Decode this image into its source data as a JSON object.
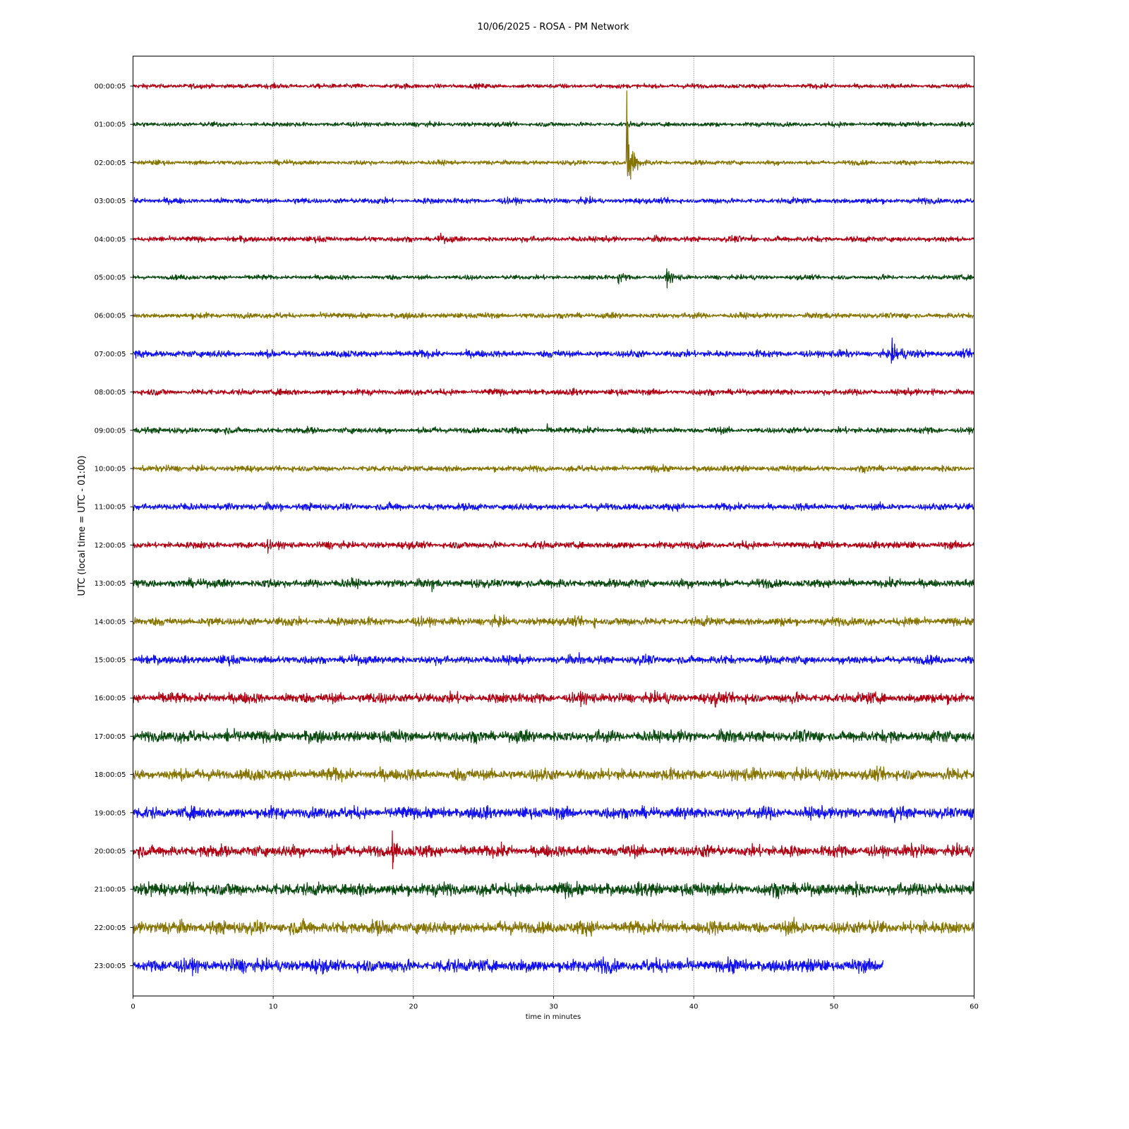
{
  "chart_data": {
    "type": "line",
    "title": "10/06/2025 - ROSA - PM Network",
    "xlabel": "time in minutes",
    "ylabel": "UTC (local time = UTC - 01:00)",
    "xlim": [
      0,
      60
    ],
    "xticks": [
      0,
      10,
      20,
      30,
      40,
      50,
      60
    ],
    "grid": "vertical dotted",
    "colors": [
      "#b00013",
      "#0a4a10",
      "#857400",
      "#1010f0"
    ],
    "series": [
      {
        "label": "00:00:05",
        "noise": 0.1,
        "end": 60,
        "events": []
      },
      {
        "label": "01:00:05",
        "noise": 0.1,
        "end": 60,
        "events": []
      },
      {
        "label": "02:00:05",
        "noise": 0.1,
        "end": 60,
        "events": [
          {
            "t": 35.2,
            "amp": 3.0,
            "dur": 0.9
          }
        ]
      },
      {
        "label": "03:00:05",
        "noise": 0.12,
        "end": 60,
        "events": []
      },
      {
        "label": "04:00:05",
        "noise": 0.12,
        "end": 60,
        "events": [
          {
            "t": 21.8,
            "amp": 0.25,
            "dur": 0.5
          },
          {
            "t": 44.1,
            "amp": 0.25,
            "dur": 0.3
          }
        ]
      },
      {
        "label": "05:00:05",
        "noise": 0.1,
        "end": 60,
        "events": [
          {
            "t": 34.6,
            "amp": 0.3,
            "dur": 1.0
          },
          {
            "t": 38.0,
            "amp": 0.3,
            "dur": 1.2
          }
        ]
      },
      {
        "label": "06:00:05",
        "noise": 0.12,
        "end": 60,
        "events": []
      },
      {
        "label": "07:00:05",
        "noise": 0.15,
        "end": 60,
        "events": [
          {
            "t": 54.0,
            "amp": 0.45,
            "dur": 2.0
          }
        ]
      },
      {
        "label": "08:00:05",
        "noise": 0.13,
        "end": 60,
        "events": [
          {
            "t": 57.0,
            "amp": 0.2,
            "dur": 0.4
          }
        ]
      },
      {
        "label": "09:00:05",
        "noise": 0.13,
        "end": 60,
        "events": [
          {
            "t": 29.5,
            "amp": 0.25,
            "dur": 0.3
          }
        ]
      },
      {
        "label": "10:00:05",
        "noise": 0.13,
        "end": 60,
        "events": [
          {
            "t": 0.7,
            "amp": 0.3,
            "dur": 0.3
          },
          {
            "t": 16.5,
            "amp": 0.2,
            "dur": 0.3
          },
          {
            "t": 31.2,
            "amp": 0.2,
            "dur": 0.2
          }
        ]
      },
      {
        "label": "11:00:05",
        "noise": 0.15,
        "end": 60,
        "events": [
          {
            "t": 6.8,
            "amp": 0.2,
            "dur": 0.4
          },
          {
            "t": 10.5,
            "amp": 0.2,
            "dur": 0.4
          }
        ]
      },
      {
        "label": "12:00:05",
        "noise": 0.15,
        "end": 60,
        "events": [
          {
            "t": 9.6,
            "amp": 0.3,
            "dur": 0.4
          }
        ]
      },
      {
        "label": "13:00:05",
        "noise": 0.18,
        "end": 60,
        "events": [
          {
            "t": 21.3,
            "amp": 0.3,
            "dur": 0.4
          }
        ]
      },
      {
        "label": "14:00:05",
        "noise": 0.18,
        "end": 60,
        "events": [
          {
            "t": 32.8,
            "amp": 0.3,
            "dur": 0.5
          }
        ]
      },
      {
        "label": "15:00:05",
        "noise": 0.18,
        "end": 60,
        "events": [
          {
            "t": 31.8,
            "amp": 0.25,
            "dur": 0.4
          }
        ]
      },
      {
        "label": "16:00:05",
        "noise": 0.22,
        "end": 60,
        "events": [
          {
            "t": 41.5,
            "amp": 0.3,
            "dur": 0.6
          }
        ]
      },
      {
        "label": "17:00:05",
        "noise": 0.25,
        "end": 60,
        "events": [
          {
            "t": 6.7,
            "amp": 0.35,
            "dur": 0.2
          }
        ]
      },
      {
        "label": "18:00:05",
        "noise": 0.25,
        "end": 60,
        "events": []
      },
      {
        "label": "19:00:05",
        "noise": 0.25,
        "end": 60,
        "events": [
          {
            "t": 54.3,
            "amp": 0.3,
            "dur": 0.2
          }
        ]
      },
      {
        "label": "20:00:05",
        "noise": 0.25,
        "end": 60,
        "events": [
          {
            "t": 18.5,
            "amp": 1.0,
            "dur": 0.6
          }
        ]
      },
      {
        "label": "21:00:05",
        "noise": 0.28,
        "end": 60,
        "events": []
      },
      {
        "label": "22:00:05",
        "noise": 0.28,
        "end": 60,
        "events": [
          {
            "t": 47.7,
            "amp": 0.3,
            "dur": 0.2
          }
        ]
      },
      {
        "label": "23:00:05",
        "noise": 0.28,
        "end": 53.5,
        "events": [
          {
            "t": 33.5,
            "amp": 0.45,
            "dur": 0.2
          }
        ]
      }
    ]
  }
}
